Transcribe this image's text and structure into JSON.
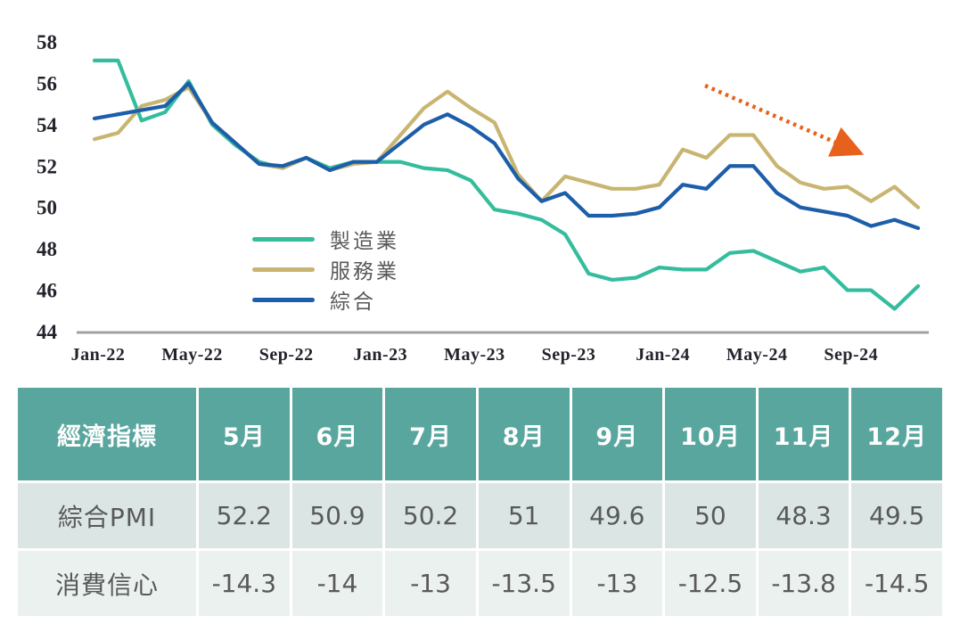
{
  "chart_data": {
    "type": "line",
    "title": "",
    "xlabel": "",
    "ylabel": "",
    "ylim": [
      44,
      58
    ],
    "y_ticks": [
      58,
      56,
      54,
      52,
      50,
      48,
      46,
      44
    ],
    "x": [
      "Jan-22",
      "Feb-22",
      "Mar-22",
      "Apr-22",
      "May-22",
      "Jun-22",
      "Jul-22",
      "Aug-22",
      "Sep-22",
      "Oct-22",
      "Nov-22",
      "Dec-22",
      "Jan-23",
      "Feb-23",
      "Mar-23",
      "Apr-23",
      "May-23",
      "Jun-23",
      "Jul-23",
      "Aug-23",
      "Sep-23",
      "Oct-23",
      "Nov-23",
      "Dec-23",
      "Jan-24",
      "Feb-24",
      "Mar-24",
      "Apr-24",
      "May-24",
      "Jun-24",
      "Jul-24",
      "Aug-24",
      "Sep-24",
      "Oct-24",
      "Nov-24",
      "Dec-24"
    ],
    "x_tick_indices": [
      0,
      4,
      8,
      12,
      16,
      20,
      24,
      28,
      32
    ],
    "grid": false,
    "legend_position": "center-left",
    "series": [
      {
        "id": "manufacturing",
        "name": "製造業",
        "color": "#34bd9d",
        "values": [
          57.1,
          57.1,
          54.2,
          54.6,
          56.1,
          54.0,
          53.0,
          52.2,
          51.9,
          52.4,
          51.9,
          52.2,
          52.2,
          52.2,
          51.9,
          51.8,
          51.3,
          49.9,
          49.7,
          49.4,
          48.7,
          46.8,
          46.5,
          46.6,
          47.1,
          47.0,
          47.0,
          47.8,
          47.9,
          47.4,
          46.9,
          47.1,
          46.0,
          46.0,
          45.1,
          46.2
        ]
      },
      {
        "id": "services",
        "name": "服務業",
        "color": "#c8b571",
        "values": [
          53.3,
          53.6,
          54.9,
          55.2,
          55.8,
          54.1,
          53.1,
          52.1,
          51.9,
          52.4,
          51.8,
          52.1,
          52.2,
          53.5,
          54.8,
          55.6,
          54.8,
          54.1,
          51.6,
          50.3,
          51.5,
          51.2,
          50.9,
          50.9,
          51.1,
          52.8,
          52.4,
          53.5,
          53.5,
          52.0,
          51.2,
          50.9,
          51.0,
          50.3,
          51.0,
          50.0
        ]
      },
      {
        "id": "composite",
        "name": "綜合",
        "color": "#1c5ea9",
        "values": [
          54.3,
          54.5,
          54.7,
          54.9,
          56.0,
          54.1,
          53.1,
          52.1,
          52.0,
          52.4,
          51.8,
          52.2,
          52.2,
          53.1,
          54.0,
          54.5,
          53.9,
          53.1,
          51.4,
          50.3,
          50.7,
          49.6,
          49.6,
          49.7,
          50.0,
          51.1,
          50.9,
          52.0,
          52.0,
          50.7,
          50.0,
          49.8,
          49.6,
          49.1,
          49.4,
          49.0
        ]
      }
    ],
    "annotation": {
      "type": "dotted-arrow",
      "color": "#e8611c",
      "from": [
        791,
        96
      ],
      "to": [
        961,
        170
      ]
    },
    "axis_line_color": "#a0a0a0"
  },
  "table": {
    "header": [
      "經濟指標",
      "5月",
      "6月",
      "7月",
      "8月",
      "9月",
      "10月",
      "11月",
      "12月"
    ],
    "rows": [
      {
        "label": "綜合PMI",
        "values": [
          "52.2",
          "50.9",
          "50.2",
          "51",
          "49.6",
          "50",
          "48.3",
          "49.5"
        ]
      },
      {
        "label": "消費信心",
        "values": [
          "-14.3",
          "-14",
          "-13",
          "-13.5",
          "-13",
          "-12.5",
          "-13.8",
          "-14.5"
        ]
      }
    ]
  }
}
